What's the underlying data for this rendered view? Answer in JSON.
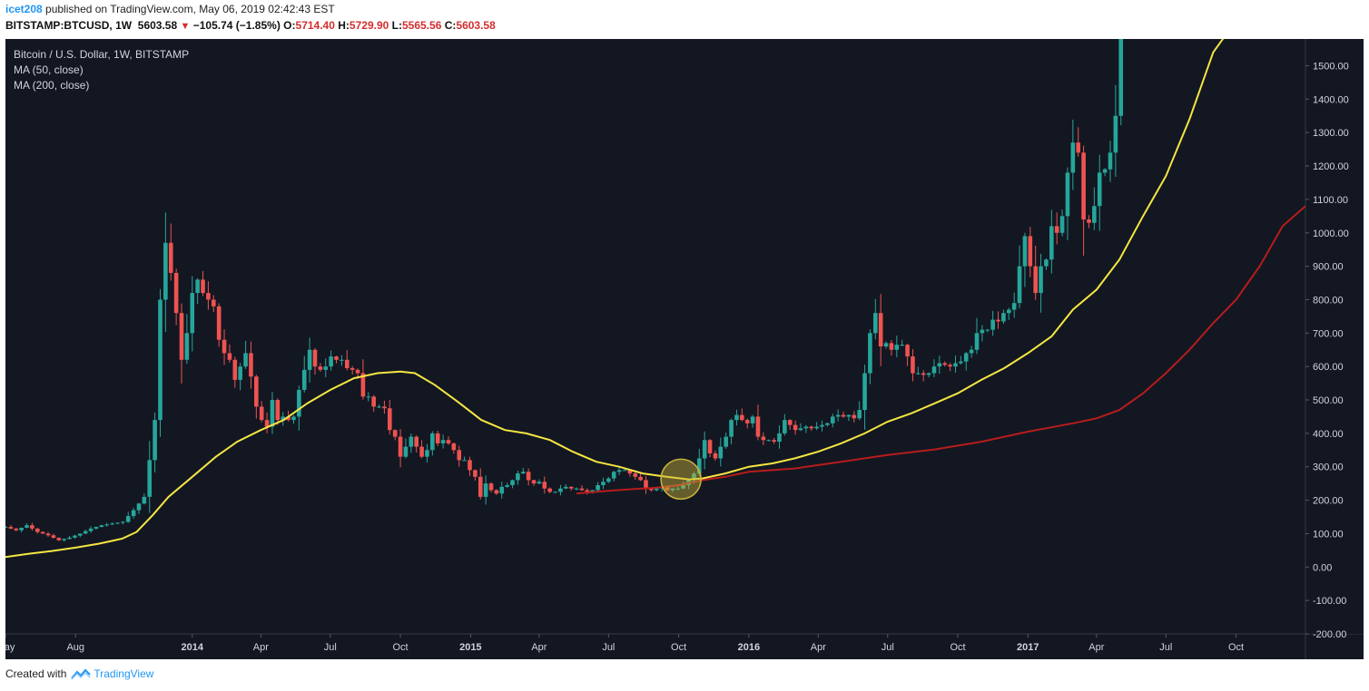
{
  "header": {
    "user": "icet208",
    "published": " published on TradingView.com, May 06, 2019 02:42:43 EST"
  },
  "symbol_bar": {
    "symbol": "BITSTAMP:BTCUSD, 1W",
    "last": "5603.58",
    "change": "−105.74 (−1.85%)",
    "o_label": "O:",
    "o": "5714.40",
    "h_label": "H:",
    "h": "5729.90",
    "l_label": "L:",
    "l": "5565.56",
    "c_label": "C:",
    "c": "5603.58"
  },
  "legend": {
    "title": "Bitcoin / U.S. Dollar, 1W, BITSTAMP",
    "ma50": "MA (50, close)",
    "ma200": "MA (200, close)"
  },
  "footer": {
    "created": "Created with",
    "brand": "TradingView"
  },
  "colors": {
    "background": "#131722",
    "up": "#26a69a",
    "down": "#ef5350",
    "ma50": "#f5e642",
    "ma200": "#b71c1c",
    "axis_text": "#d1d4dc",
    "highlight": "#c9b33a"
  },
  "chart_data": {
    "type": "candlestick",
    "x_range": [
      "2013-05-01",
      "2017-12-31"
    ],
    "ylim": [
      -200,
      1580
    ],
    "y_ticks": [
      -200,
      -100,
      0,
      100,
      200,
      300,
      400,
      500,
      600,
      700,
      800,
      900,
      1000,
      1100,
      1200,
      1300,
      1400,
      1500
    ],
    "y_tick_labels": [
      "-200.00",
      "-100.00",
      "0.00",
      "100.00",
      "200.00",
      "300.00",
      "400.00",
      "500.00",
      "600.00",
      "700.00",
      "800.00",
      "900.00",
      "1000.00",
      "1100.00",
      "1200.00",
      "1300.00",
      "1400.00",
      "1500.00"
    ],
    "x_ticks": [
      {
        "date": "2013-05-01",
        "label": "May",
        "bold": false
      },
      {
        "date": "2013-08-01",
        "label": "Aug",
        "bold": false
      },
      {
        "date": "2014-01-01",
        "label": "2014",
        "bold": true
      },
      {
        "date": "2014-04-01",
        "label": "Apr",
        "bold": false
      },
      {
        "date": "2014-07-01",
        "label": "Jul",
        "bold": false
      },
      {
        "date": "2014-10-01",
        "label": "Oct",
        "bold": false
      },
      {
        "date": "2015-01-01",
        "label": "2015",
        "bold": true
      },
      {
        "date": "2015-04-01",
        "label": "Apr",
        "bold": false
      },
      {
        "date": "2015-07-01",
        "label": "Jul",
        "bold": false
      },
      {
        "date": "2015-10-01",
        "label": "Oct",
        "bold": false
      },
      {
        "date": "2016-01-01",
        "label": "2016",
        "bold": true
      },
      {
        "date": "2016-04-01",
        "label": "Apr",
        "bold": false
      },
      {
        "date": "2016-07-01",
        "label": "Jul",
        "bold": false
      },
      {
        "date": "2016-10-01",
        "label": "Oct",
        "bold": false
      },
      {
        "date": "2017-01-01",
        "label": "2017",
        "bold": true
      },
      {
        "date": "2017-04-01",
        "label": "Apr",
        "bold": false
      },
      {
        "date": "2017-07-01",
        "label": "Jul",
        "bold": false
      },
      {
        "date": "2017-10-01",
        "label": "Oct",
        "bold": false
      }
    ],
    "close_path": [
      [
        "2013-05-01",
        120
      ],
      [
        "2013-05-15",
        110
      ],
      [
        "2013-05-29",
        125
      ],
      [
        "2013-06-12",
        105
      ],
      [
        "2013-06-26",
        95
      ],
      [
        "2013-07-10",
        80
      ],
      [
        "2013-07-24",
        88
      ],
      [
        "2013-08-07",
        100
      ],
      [
        "2013-08-21",
        115
      ],
      [
        "2013-09-04",
        125
      ],
      [
        "2013-09-18",
        130
      ],
      [
        "2013-10-02",
        135
      ],
      [
        "2013-10-16",
        170
      ],
      [
        "2013-10-30",
        210
      ],
      [
        "2013-11-06",
        320
      ],
      [
        "2013-11-13",
        440
      ],
      [
        "2013-11-20",
        800
      ],
      [
        "2013-11-27",
        970
      ],
      [
        "2013-12-04",
        880
      ],
      [
        "2013-12-11",
        760
      ],
      [
        "2013-12-18",
        620
      ],
      [
        "2013-12-25",
        700
      ],
      [
        "2014-01-01",
        820
      ],
      [
        "2014-01-08",
        860
      ],
      [
        "2014-01-15",
        820
      ],
      [
        "2014-01-22",
        800
      ],
      [
        "2014-01-29",
        780
      ],
      [
        "2014-02-05",
        680
      ],
      [
        "2014-02-12",
        640
      ],
      [
        "2014-02-19",
        620
      ],
      [
        "2014-02-26",
        560
      ],
      [
        "2014-03-05",
        600
      ],
      [
        "2014-03-12",
        640
      ],
      [
        "2014-03-19",
        570
      ],
      [
        "2014-03-26",
        480
      ],
      [
        "2014-04-02",
        440
      ],
      [
        "2014-04-09",
        420
      ],
      [
        "2014-04-16",
        500
      ],
      [
        "2014-04-23",
        440
      ],
      [
        "2014-04-30",
        450
      ],
      [
        "2014-05-07",
        440
      ],
      [
        "2014-05-14",
        450
      ],
      [
        "2014-05-21",
        530
      ],
      [
        "2014-05-28",
        590
      ],
      [
        "2014-06-04",
        650
      ],
      [
        "2014-06-11",
        600
      ],
      [
        "2014-06-18",
        590
      ],
      [
        "2014-06-25",
        600
      ],
      [
        "2014-07-02",
        630
      ],
      [
        "2014-07-09",
        620
      ],
      [
        "2014-07-16",
        620
      ],
      [
        "2014-07-23",
        595
      ],
      [
        "2014-07-30",
        590
      ],
      [
        "2014-08-06",
        580
      ],
      [
        "2014-08-13",
        510
      ],
      [
        "2014-08-20",
        510
      ],
      [
        "2014-08-27",
        480
      ],
      [
        "2014-09-03",
        480
      ],
      [
        "2014-09-10",
        475
      ],
      [
        "2014-09-17",
        410
      ],
      [
        "2014-09-24",
        390
      ],
      [
        "2014-10-01",
        330
      ],
      [
        "2014-10-08",
        360
      ],
      [
        "2014-10-15",
        390
      ],
      [
        "2014-10-22",
        360
      ],
      [
        "2014-10-29",
        330
      ],
      [
        "2014-11-05",
        350
      ],
      [
        "2014-11-12",
        400
      ],
      [
        "2014-11-19",
        370
      ],
      [
        "2014-11-26",
        380
      ],
      [
        "2014-12-03",
        370
      ],
      [
        "2014-12-10",
        350
      ],
      [
        "2014-12-17",
        320
      ],
      [
        "2014-12-24",
        320
      ],
      [
        "2014-12-31",
        290
      ],
      [
        "2015-01-07",
        270
      ],
      [
        "2015-01-14",
        210
      ],
      [
        "2015-01-21",
        250
      ],
      [
        "2015-01-28",
        230
      ],
      [
        "2015-02-04",
        220
      ],
      [
        "2015-02-11",
        240
      ],
      [
        "2015-02-18",
        245
      ],
      [
        "2015-02-25",
        260
      ],
      [
        "2015-03-04",
        280
      ],
      [
        "2015-03-11",
        285
      ],
      [
        "2015-03-18",
        260
      ],
      [
        "2015-03-25",
        250
      ],
      [
        "2015-04-01",
        255
      ],
      [
        "2015-04-08",
        235
      ],
      [
        "2015-04-15",
        225
      ],
      [
        "2015-04-22",
        225
      ],
      [
        "2015-04-29",
        235
      ],
      [
        "2015-05-06",
        240
      ],
      [
        "2015-05-13",
        235
      ],
      [
        "2015-05-20",
        235
      ],
      [
        "2015-05-27",
        230
      ],
      [
        "2015-06-03",
        225
      ],
      [
        "2015-06-10",
        230
      ],
      [
        "2015-06-17",
        245
      ],
      [
        "2015-06-24",
        255
      ],
      [
        "2015-07-01",
        265
      ],
      [
        "2015-07-08",
        285
      ],
      [
        "2015-07-15",
        290
      ],
      [
        "2015-07-22",
        290
      ],
      [
        "2015-07-29",
        280
      ],
      [
        "2015-08-05",
        270
      ],
      [
        "2015-08-12",
        260
      ],
      [
        "2015-08-19",
        235
      ],
      [
        "2015-08-26",
        230
      ],
      [
        "2015-09-02",
        235
      ],
      [
        "2015-09-09",
        240
      ],
      [
        "2015-09-16",
        230
      ],
      [
        "2015-09-23",
        235
      ],
      [
        "2015-09-30",
        235
      ],
      [
        "2015-10-07",
        245
      ],
      [
        "2015-10-14",
        260
      ],
      [
        "2015-10-21",
        280
      ],
      [
        "2015-10-28",
        325
      ],
      [
        "2015-11-04",
        380
      ],
      [
        "2015-11-11",
        340
      ],
      [
        "2015-11-18",
        325
      ],
      [
        "2015-11-25",
        360
      ],
      [
        "2015-12-02",
        390
      ],
      [
        "2015-12-09",
        440
      ],
      [
        "2015-12-16",
        455
      ],
      [
        "2015-12-23",
        440
      ],
      [
        "2015-12-30",
        430
      ],
      [
        "2016-01-06",
        450
      ],
      [
        "2016-01-13",
        390
      ],
      [
        "2016-01-20",
        380
      ],
      [
        "2016-01-27",
        380
      ],
      [
        "2016-02-03",
        375
      ],
      [
        "2016-02-10",
        400
      ],
      [
        "2016-02-17",
        440
      ],
      [
        "2016-02-24",
        425
      ],
      [
        "2016-03-02",
        410
      ],
      [
        "2016-03-09",
        415
      ],
      [
        "2016-03-16",
        420
      ],
      [
        "2016-03-23",
        415
      ],
      [
        "2016-03-30",
        420
      ],
      [
        "2016-04-06",
        425
      ],
      [
        "2016-04-13",
        430
      ],
      [
        "2016-04-20",
        450
      ],
      [
        "2016-04-27",
        455
      ],
      [
        "2016-05-04",
        450
      ],
      [
        "2016-05-11",
        455
      ],
      [
        "2016-05-18",
        445
      ],
      [
        "2016-05-25",
        470
      ],
      [
        "2016-06-01",
        580
      ],
      [
        "2016-06-08",
        700
      ],
      [
        "2016-06-15",
        760
      ],
      [
        "2016-06-22",
        660
      ],
      [
        "2016-06-29",
        670
      ],
      [
        "2016-07-06",
        650
      ],
      [
        "2016-07-13",
        665
      ],
      [
        "2016-07-20",
        665
      ],
      [
        "2016-07-27",
        630
      ],
      [
        "2016-08-03",
        580
      ],
      [
        "2016-08-10",
        580
      ],
      [
        "2016-08-17",
        575
      ],
      [
        "2016-08-24",
        580
      ],
      [
        "2016-08-31",
        600
      ],
      [
        "2016-09-07",
        610
      ],
      [
        "2016-09-14",
        605
      ],
      [
        "2016-09-21",
        600
      ],
      [
        "2016-09-28",
        610
      ],
      [
        "2016-10-05",
        615
      ],
      [
        "2016-10-12",
        640
      ],
      [
        "2016-10-19",
        650
      ],
      [
        "2016-10-26",
        700
      ],
      [
        "2016-11-02",
        710
      ],
      [
        "2016-11-09",
        710
      ],
      [
        "2016-11-16",
        740
      ],
      [
        "2016-11-23",
        735
      ],
      [
        "2016-11-30",
        760
      ],
      [
        "2016-12-07",
        770
      ],
      [
        "2016-12-14",
        790
      ],
      [
        "2016-12-21",
        900
      ],
      [
        "2016-12-28",
        990
      ],
      [
        "2017-01-04",
        900
      ],
      [
        "2017-01-11",
        820
      ],
      [
        "2017-01-18",
        900
      ],
      [
        "2017-01-25",
        920
      ],
      [
        "2017-02-01",
        1020
      ],
      [
        "2017-02-08",
        1000
      ],
      [
        "2017-02-15",
        1050
      ],
      [
        "2017-02-22",
        1180
      ],
      [
        "2017-03-01",
        1270
      ],
      [
        "2017-03-08",
        1240
      ],
      [
        "2017-03-15",
        1040
      ],
      [
        "2017-03-22",
        1030
      ],
      [
        "2017-03-29",
        1080
      ],
      [
        "2017-04-05",
        1180
      ],
      [
        "2017-04-12",
        1190
      ],
      [
        "2017-04-19",
        1240
      ],
      [
        "2017-04-26",
        1350
      ],
      [
        "2017-05-03",
        1580
      ]
    ],
    "ma50_path": [
      [
        "2013-05-01",
        30
      ],
      [
        "2013-06-01",
        40
      ],
      [
        "2013-07-01",
        48
      ],
      [
        "2013-08-01",
        58
      ],
      [
        "2013-09-01",
        70
      ],
      [
        "2013-10-01",
        85
      ],
      [
        "2013-10-20",
        105
      ],
      [
        "2013-11-10",
        155
      ],
      [
        "2013-12-01",
        210
      ],
      [
        "2014-01-01",
        270
      ],
      [
        "2014-02-01",
        330
      ],
      [
        "2014-03-01",
        375
      ],
      [
        "2014-04-01",
        410
      ],
      [
        "2014-05-01",
        440
      ],
      [
        "2014-06-01",
        490
      ],
      [
        "2014-07-01",
        530
      ],
      [
        "2014-08-01",
        565
      ],
      [
        "2014-09-01",
        580
      ],
      [
        "2014-10-01",
        585
      ],
      [
        "2014-10-20",
        580
      ],
      [
        "2014-11-15",
        545
      ],
      [
        "2014-12-15",
        495
      ],
      [
        "2015-01-15",
        440
      ],
      [
        "2015-02-15",
        410
      ],
      [
        "2015-03-15",
        400
      ],
      [
        "2015-04-15",
        380
      ],
      [
        "2015-05-15",
        345
      ],
      [
        "2015-06-15",
        315
      ],
      [
        "2015-07-15",
        300
      ],
      [
        "2015-08-15",
        280
      ],
      [
        "2015-09-15",
        270
      ],
      [
        "2015-10-15",
        262
      ],
      [
        "2015-11-01",
        265
      ],
      [
        "2015-12-01",
        280
      ],
      [
        "2016-01-01",
        300
      ],
      [
        "2016-02-01",
        310
      ],
      [
        "2016-03-01",
        325
      ],
      [
        "2016-04-01",
        345
      ],
      [
        "2016-05-01",
        370
      ],
      [
        "2016-06-01",
        400
      ],
      [
        "2016-07-01",
        435
      ],
      [
        "2016-08-01",
        460
      ],
      [
        "2016-09-01",
        490
      ],
      [
        "2016-10-01",
        520
      ],
      [
        "2016-11-01",
        560
      ],
      [
        "2016-12-01",
        595
      ],
      [
        "2017-01-01",
        640
      ],
      [
        "2017-02-01",
        690
      ],
      [
        "2017-03-01",
        770
      ],
      [
        "2017-04-01",
        830
      ],
      [
        "2017-05-01",
        920
      ],
      [
        "2017-06-01",
        1050
      ],
      [
        "2017-07-01",
        1170
      ],
      [
        "2017-08-01",
        1340
      ],
      [
        "2017-09-01",
        1540
      ],
      [
        "2017-09-20",
        1600
      ]
    ],
    "ma200_path": [
      [
        "2015-05-20",
        220
      ],
      [
        "2015-07-01",
        228
      ],
      [
        "2015-08-01",
        233
      ],
      [
        "2015-09-01",
        237
      ],
      [
        "2015-10-01",
        245
      ],
      [
        "2015-11-01",
        260
      ],
      [
        "2015-12-01",
        270
      ],
      [
        "2016-01-01",
        285
      ],
      [
        "2016-03-01",
        295
      ],
      [
        "2016-05-01",
        315
      ],
      [
        "2016-07-01",
        335
      ],
      [
        "2016-09-01",
        352
      ],
      [
        "2016-11-01",
        375
      ],
      [
        "2017-01-01",
        405
      ],
      [
        "2017-03-01",
        430
      ],
      [
        "2017-04-01",
        445
      ],
      [
        "2017-05-01",
        470
      ],
      [
        "2017-06-01",
        520
      ],
      [
        "2017-07-01",
        580
      ],
      [
        "2017-08-01",
        650
      ],
      [
        "2017-09-01",
        730
      ],
      [
        "2017-10-01",
        800
      ],
      [
        "2017-11-01",
        900
      ],
      [
        "2017-12-01",
        1020
      ],
      [
        "2017-12-31",
        1080
      ]
    ],
    "annotation": {
      "type": "circle",
      "date": "2015-10-04",
      "value": 263
    }
  }
}
